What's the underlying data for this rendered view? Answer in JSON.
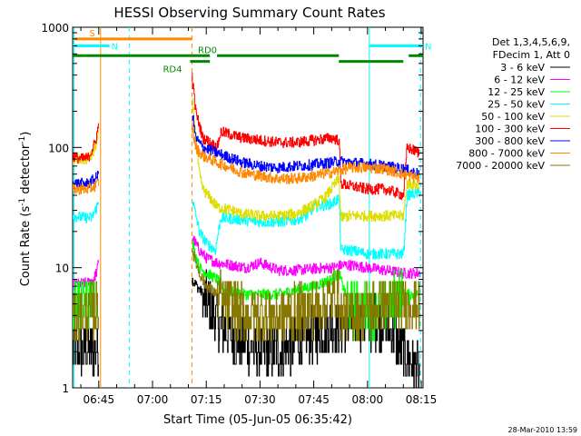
{
  "chart_data": {
    "type": "line",
    "title": "HESSI Observing Summary Count Rates",
    "xlabel": "Start Time (05-Jun-05 06:35:42)",
    "ylabel": "Count Rate (s⁻¹ detector⁻¹)",
    "ylabel_parts": {
      "base": "Count Rate (s",
      "sup1": "-1",
      "mid": " detector",
      "sup2": "-1",
      "end": ")"
    },
    "y_scale": "log",
    "ylim": [
      1,
      1000
    ],
    "xlim_minutes": [
      37.7,
      135.5
    ],
    "x_ticks": [
      {
        "label": "06:45",
        "minutes": 45
      },
      {
        "label": "07:00",
        "minutes": 60
      },
      {
        "label": "07:15",
        "minutes": 75
      },
      {
        "label": "07:30",
        "minutes": 90
      },
      {
        "label": "07:45",
        "minutes": 105
      },
      {
        "label": "08:00",
        "minutes": 120
      },
      {
        "label": "08:15",
        "minutes": 135
      }
    ],
    "y_ticks": [
      {
        "label": "1",
        "value": 1
      },
      {
        "label": "10",
        "value": 10
      },
      {
        "label": "100",
        "value": 100
      },
      {
        "label": "1000",
        "value": 1000
      }
    ],
    "legend_header": [
      "Det 1,3,4,5,6,9,",
      "FDecim 1, Att 0"
    ],
    "legend_position": "right",
    "timestamp": "28-Mar-2010 13:59",
    "series": [
      {
        "name": "3 - 6 keV",
        "color": "#000000",
        "pre": [
          [
            37.7,
            2
          ],
          [
            43,
            2
          ],
          [
            45,
            2
          ]
        ],
        "post": [
          [
            71,
            8
          ],
          [
            74,
            6
          ],
          [
            77,
            4
          ],
          [
            80,
            3
          ],
          [
            85,
            2.3
          ],
          [
            90,
            2
          ],
          [
            95,
            2
          ],
          [
            100,
            2.3
          ],
          [
            105,
            2.8
          ],
          [
            110,
            3.2
          ],
          [
            115,
            3.4
          ],
          [
            120,
            3.6
          ],
          [
            125,
            3.5
          ],
          [
            130,
            2
          ],
          [
            134.5,
            1.4
          ]
        ]
      },
      {
        "name": "6 - 12 keV",
        "color": "#ff00ff",
        "pre": [
          [
            37.7,
            7.2
          ],
          [
            42,
            7.5
          ],
          [
            43.5,
            8
          ],
          [
            44.5,
            9.5
          ],
          [
            45,
            12
          ]
        ],
        "post": [
          [
            71,
            18
          ],
          [
            73,
            14
          ],
          [
            75,
            12
          ],
          [
            78,
            11
          ],
          [
            82,
            10.5
          ],
          [
            86,
            10
          ],
          [
            90,
            11
          ],
          [
            95,
            9.5
          ],
          [
            100,
            9.5
          ],
          [
            105,
            9.8
          ],
          [
            110,
            10
          ],
          [
            113,
            10.5
          ],
          [
            115,
            10.5
          ],
          [
            120,
            10
          ],
          [
            125,
            9.5
          ],
          [
            130,
            9
          ],
          [
            134.5,
            9
          ]
        ]
      },
      {
        "name": "12 - 25 keV",
        "color": "#00ff00",
        "pre": [
          [
            37.7,
            5
          ],
          [
            43,
            5.5
          ],
          [
            45,
            6
          ]
        ],
        "post": [
          [
            71,
            16
          ],
          [
            73,
            10
          ],
          [
            75,
            9
          ],
          [
            78,
            8
          ],
          [
            80,
            6.5
          ],
          [
            85,
            6
          ],
          [
            90,
            6
          ],
          [
            95,
            6
          ],
          [
            100,
            6.5
          ],
          [
            105,
            7
          ],
          [
            110,
            8
          ],
          [
            112,
            9
          ],
          [
            115,
            4.5
          ],
          [
            120,
            4.3
          ],
          [
            125,
            5
          ],
          [
            130,
            6
          ],
          [
            134.5,
            6
          ]
        ]
      },
      {
        "name": "25 - 50 keV",
        "color": "#00ffff",
        "pre": [
          [
            37.7,
            27
          ],
          [
            41,
            26
          ],
          [
            43,
            26
          ],
          [
            44,
            30
          ],
          [
            45,
            35
          ]
        ],
        "post": [
          [
            71,
            38
          ],
          [
            73,
            20
          ],
          [
            75,
            16
          ],
          [
            77.5,
            14
          ],
          [
            79,
            26
          ],
          [
            85,
            25
          ],
          [
            90,
            24
          ],
          [
            95,
            24
          ],
          [
            100,
            25
          ],
          [
            103,
            27
          ],
          [
            105,
            32
          ],
          [
            110,
            34
          ],
          [
            112,
            38
          ],
          [
            112.5,
            14
          ],
          [
            115,
            14
          ],
          [
            120,
            13
          ],
          [
            125,
            13
          ],
          [
            130,
            13
          ],
          [
            131,
            40
          ],
          [
            134.5,
            42
          ]
        ]
      },
      {
        "name": "50 - 100 keV",
        "color": "#dddd00",
        "pre": [
          [
            37.7,
            78
          ],
          [
            42,
            80
          ],
          [
            43.5,
            90
          ],
          [
            45,
            130
          ]
        ],
        "post": [
          [
            71,
            250
          ],
          [
            73,
            60
          ],
          [
            74,
            45
          ],
          [
            76,
            38
          ],
          [
            78,
            32
          ],
          [
            82,
            30
          ],
          [
            85,
            28
          ],
          [
            90,
            27
          ],
          [
            95,
            27
          ],
          [
            100,
            28
          ],
          [
            104,
            32
          ],
          [
            108,
            38
          ],
          [
            112,
            55
          ],
          [
            112.5,
            26
          ],
          [
            115,
            27
          ],
          [
            120,
            27
          ],
          [
            125,
            27
          ],
          [
            130,
            27
          ],
          [
            131,
            50
          ],
          [
            134.5,
            48
          ]
        ]
      },
      {
        "name": "100 - 300 keV",
        "color": "#ff0000",
        "pre": [
          [
            37.7,
            85
          ],
          [
            40,
            80
          ],
          [
            42,
            82
          ],
          [
            44,
            110
          ],
          [
            45,
            160
          ]
        ],
        "post": [
          [
            71,
            400
          ],
          [
            72,
            200
          ],
          [
            74,
            120
          ],
          [
            76,
            110
          ],
          [
            78,
            100
          ],
          [
            79,
            135
          ],
          [
            81,
            130
          ],
          [
            85,
            120
          ],
          [
            90,
            115
          ],
          [
            95,
            110
          ],
          [
            100,
            110
          ],
          [
            105,
            115
          ],
          [
            110,
            120
          ],
          [
            112,
            115
          ],
          [
            112.5,
            50
          ],
          [
            115,
            48
          ],
          [
            120,
            45
          ],
          [
            125,
            45
          ],
          [
            130,
            40
          ],
          [
            131,
            100
          ],
          [
            134.5,
            90
          ]
        ]
      },
      {
        "name": "300 - 800 keV",
        "color": "#0000ff",
        "pre": [
          [
            37.7,
            50
          ],
          [
            42,
            50
          ],
          [
            44,
            55
          ],
          [
            45,
            60
          ]
        ],
        "post": [
          [
            71,
            200
          ],
          [
            72,
            120
          ],
          [
            74,
            100
          ],
          [
            76,
            95
          ],
          [
            78,
            90
          ],
          [
            85,
            75
          ],
          [
            90,
            70
          ],
          [
            95,
            68
          ],
          [
            100,
            70
          ],
          [
            105,
            72
          ],
          [
            110,
            75
          ],
          [
            112,
            77
          ],
          [
            115,
            75
          ],
          [
            120,
            73
          ],
          [
            125,
            70
          ],
          [
            130,
            66
          ],
          [
            134.5,
            60
          ]
        ]
      },
      {
        "name": "800 - 7000 keV",
        "color": "#ff8800",
        "pre": [
          [
            37.7,
            45
          ],
          [
            42,
            45
          ],
          [
            44,
            48
          ],
          [
            45,
            52
          ]
        ],
        "post": [
          [
            71,
            150
          ],
          [
            72,
            100
          ],
          [
            74,
            85
          ],
          [
            76,
            80
          ],
          [
            78,
            75
          ],
          [
            85,
            62
          ],
          [
            90,
            58
          ],
          [
            95,
            55
          ],
          [
            100,
            55
          ],
          [
            105,
            58
          ],
          [
            110,
            62
          ],
          [
            112,
            64
          ],
          [
            115,
            68
          ],
          [
            120,
            68
          ],
          [
            125,
            66
          ],
          [
            130,
            60
          ],
          [
            134.5,
            55
          ]
        ]
      },
      {
        "name": "7000 - 20000 keV",
        "color": "#887700",
        "pre": [
          [
            37.7,
            4
          ],
          [
            42,
            4.2
          ],
          [
            44,
            4.5
          ],
          [
            45,
            5
          ]
        ],
        "post": [
          [
            71,
            14
          ],
          [
            73,
            9
          ],
          [
            75,
            7
          ],
          [
            78,
            6
          ],
          [
            80,
            5
          ],
          [
            85,
            4.2
          ],
          [
            90,
            4
          ],
          [
            95,
            4
          ],
          [
            100,
            4.2
          ],
          [
            105,
            4.5
          ],
          [
            110,
            5.5
          ],
          [
            112,
            6
          ],
          [
            112.5,
            4
          ],
          [
            115,
            4
          ],
          [
            120,
            4.5
          ],
          [
            125,
            5
          ],
          [
            130,
            5
          ],
          [
            134.5,
            5
          ]
        ]
      }
    ],
    "events": [
      {
        "name": "S",
        "color": "#ff8800",
        "start": 38.3,
        "end": 71,
        "level": 800
      },
      {
        "name": "N",
        "color": "#00ffff",
        "start": 37.7,
        "end": 48,
        "level": 700
      },
      {
        "name": "N",
        "color": "#00ffff",
        "start": 120.5,
        "end": 135.5,
        "level": 700
      },
      {
        "name": "RD0",
        "color": "#008800",
        "start": 37.7,
        "end": 76,
        "level": 580
      },
      {
        "name": "RD4",
        "color": "#008800",
        "start": 70.5,
        "end": 76,
        "level": 520
      },
      {
        "name": "",
        "color": "#008800",
        "start": 78,
        "end": 112,
        "level": 580
      },
      {
        "name": "",
        "color": "#008800",
        "start": 112,
        "end": 130,
        "level": 520
      },
      {
        "name": "",
        "color": "#008800",
        "start": 131.5,
        "end": 135.5,
        "level": 580
      }
    ],
    "vlines": [
      {
        "minutes": 38.1,
        "color": "#00ffff",
        "dash": false
      },
      {
        "minutes": 45.5,
        "color": "#ff8800",
        "dash": false
      },
      {
        "minutes": 53.5,
        "color": "#00ffff",
        "dash": true
      },
      {
        "minutes": 71,
        "color": "#ff8800",
        "dash": true
      },
      {
        "minutes": 120.5,
        "color": "#00ffff",
        "dash": false
      },
      {
        "minutes": 134.8,
        "color": "#00ffff",
        "dash": true
      }
    ]
  }
}
